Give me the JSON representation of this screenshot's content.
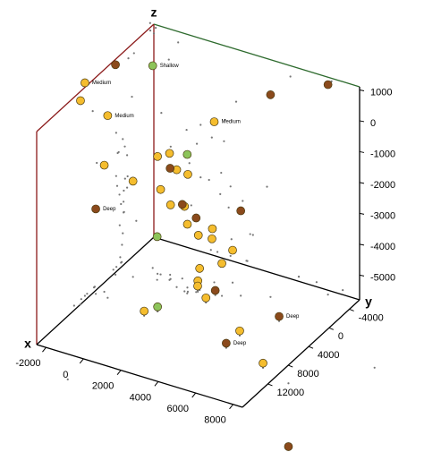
{
  "chart_data": {
    "type": "scatter3d",
    "xlabel": "x",
    "ylabel": "y",
    "zlabel": "z",
    "xlim": [
      -2500,
      8500
    ],
    "ylim": [
      -6000,
      17000
    ],
    "zlim": [
      -5800,
      1100
    ],
    "xticks": [
      -2000,
      0,
      2000,
      4000,
      6000,
      8000
    ],
    "yticks": [
      -4000,
      0,
      4000,
      8000,
      12000
    ],
    "zticks": [
      1000,
      0,
      -1000,
      -2000,
      -3000,
      -4000,
      -5000
    ],
    "projections": true,
    "series": [
      {
        "color": "#f5bd2e",
        "x": [
          -2700,
          -2500,
          -1700,
          1900,
          0,
          -750,
          600,
          -2100,
          -1600,
          1250,
          -600,
          0,
          1100,
          1050,
          2250,
          2200,
          1500,
          2650,
          2800,
          1650,
          1650,
          1600,
          2450,
          550,
          5250,
          7600
        ],
        "y": [
          6800,
          8400,
          6000,
          -1700,
          100,
          -300,
          900,
          5200,
          1400,
          1100,
          -350,
          -100,
          1200,
          450,
          -50,
          -150,
          -50,
          -2550,
          100,
          250,
          600,
          450,
          1950,
          7100,
          5600,
          9650
        ],
        "z": [
          1100,
          800,
          100,
          -600,
          -1700,
          -2000,
          -2000,
          -1700,
          -2700,
          -2000,
          -3050,
          -3400,
          -3050,
          -3750,
          -3750,
          -4100,
          -4100,
          -4750,
          -4750,
          -5100,
          -5450,
          -5650,
          -5650,
          -5650,
          -5650,
          -5650
        ],
        "labels": [
          "Medium",
          null,
          "Medium",
          "Medium",
          null,
          null,
          null,
          null,
          null,
          null,
          null,
          null,
          null,
          null,
          null,
          null,
          null,
          null,
          null,
          null,
          null,
          null,
          null,
          null,
          null,
          null
        ]
      },
      {
        "color": "#8b4a1c",
        "x": [
          -2400,
          4800,
          7000,
          -200,
          -2350,
          450,
          1600,
          3550,
          2500,
          6200,
          5250,
          9300
        ],
        "y": [
          1900,
          -2100,
          -5300,
          -750,
          5950,
          -750,
          750,
          -850,
          300,
          1350,
          8250,
          10900
        ],
        "z": [
          1000,
          750,
          1000,
          -2350,
          -3050,
          -3400,
          -3400,
          -3050,
          -5650,
          -5650,
          -5650,
          -7850
        ],
        "labels": [
          null,
          null,
          null,
          null,
          "Deep",
          null,
          null,
          null,
          null,
          "Deep",
          "Deep",
          null
        ]
      },
      {
        "color": "#8dc45a",
        "x": [
          -1200,
          1300,
          -500,
          900
        ],
        "y": [
          -1000,
          1400,
          700,
          5750
        ],
        "z": [
          750,
          -1300,
          -4400,
          -5650
        ],
        "labels": [
          "Shallow",
          null,
          null,
          null
        ]
      }
    ]
  }
}
